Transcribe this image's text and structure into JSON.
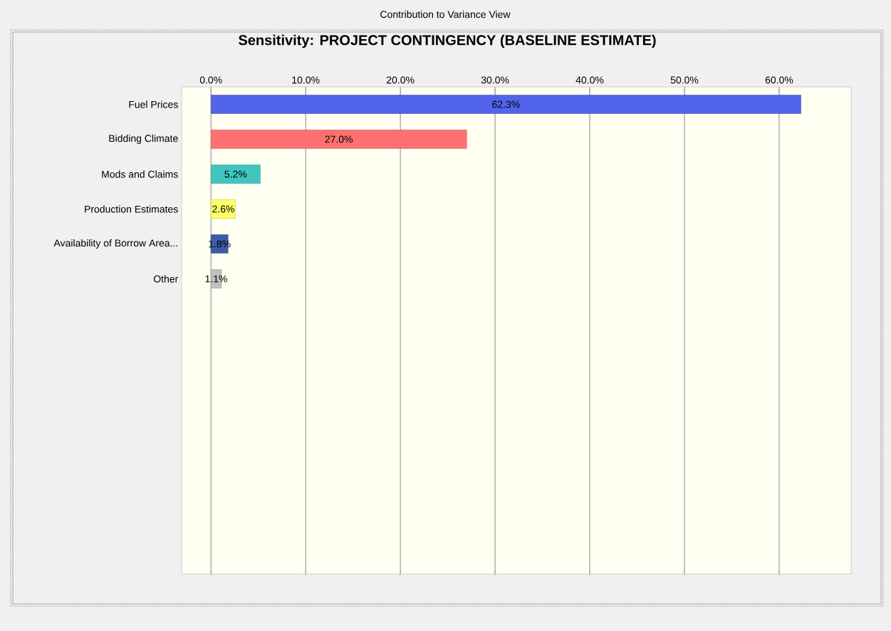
{
  "chart_data": {
    "type": "bar",
    "orientation": "horizontal",
    "title": "Sensitivity: PROJECT CONTINGENCY (BASELINE ESTIMATE)",
    "annotations": [
      "Contribution to Variance View"
    ],
    "categories": [
      "Fuel Prices",
      "Bidding Climate",
      "Mods and Claims",
      "Production Estimates",
      "Availability of Borrow Area...",
      "Other"
    ],
    "values": [
      62.3,
      27.0,
      5.2,
      2.6,
      1.8,
      1.1
    ],
    "value_labels": [
      "62.3%",
      "27.0%",
      "5.2%",
      "2.6%",
      "1.8%",
      "1.1%"
    ],
    "colors": [
      "#5264ea",
      "#ff7070",
      "#40c6bf",
      "#ffff66",
      "#3c5ca8",
      "#c0c0c0"
    ],
    "xlim": [
      -3.1,
      67.6
    ],
    "xticks": [
      {
        "value": 0,
        "label": "0.0%"
      },
      {
        "value": 10,
        "label": "10.0%"
      },
      {
        "value": 20,
        "label": "20.0%"
      },
      {
        "value": 30,
        "label": "30.0%"
      },
      {
        "value": 40,
        "label": "40.0%"
      },
      {
        "value": 50,
        "label": "50.0%"
      },
      {
        "value": 60,
        "label": "60.0%"
      }
    ],
    "grid": "x"
  }
}
